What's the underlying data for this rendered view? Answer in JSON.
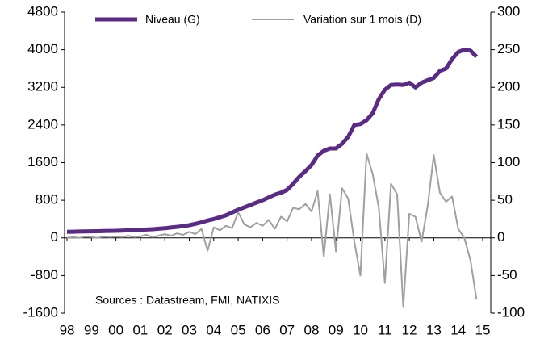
{
  "chart_data": {
    "type": "line",
    "annotation": "Sources : Datastream, FMI, NATIXIS",
    "x": [
      1998,
      1998.25,
      1998.5,
      1998.75,
      1999,
      1999.25,
      1999.5,
      1999.75,
      2000,
      2000.25,
      2000.5,
      2000.75,
      2001,
      2001.25,
      2001.5,
      2001.75,
      2002,
      2002.25,
      2002.5,
      2002.75,
      2003,
      2003.25,
      2003.5,
      2003.75,
      2004,
      2004.25,
      2004.5,
      2004.75,
      2005,
      2005.25,
      2005.5,
      2005.75,
      2006,
      2006.25,
      2006.5,
      2006.75,
      2007,
      2007.25,
      2007.5,
      2007.75,
      2008,
      2008.25,
      2008.5,
      2008.75,
      2009,
      2009.25,
      2009.5,
      2009.75,
      2010,
      2010.25,
      2010.5,
      2010.75,
      2011,
      2011.25,
      2011.5,
      2011.75,
      2012,
      2012.25,
      2012.5,
      2012.75,
      2013,
      2013.25,
      2013.5,
      2013.75,
      2014,
      2014.25,
      2014.5,
      2014.75
    ],
    "series": [
      {
        "name": "Niveau (G)",
        "color": "#5b2a86",
        "axis": "y",
        "values": [
          130,
          132,
          135,
          137,
          140,
          142,
          145,
          148,
          150,
          155,
          160,
          165,
          170,
          178,
          185,
          195,
          205,
          220,
          235,
          250,
          270,
          300,
          330,
          370,
          400,
          440,
          480,
          540,
          600,
          650,
          700,
          750,
          800,
          860,
          920,
          960,
          1020,
          1150,
          1300,
          1420,
          1550,
          1750,
          1850,
          1900,
          1900,
          2000,
          2150,
          2400,
          2420,
          2500,
          2650,
          2950,
          3150,
          3250,
          3260,
          3250,
          3300,
          3200,
          3300,
          3350,
          3400,
          3550,
          3600,
          3800,
          3950,
          4000,
          3980,
          3850
        ]
      },
      {
        "name": "Variation sur 1 mois (D)",
        "color": "#a0a0a0",
        "axis": "y2",
        "values": [
          0,
          1,
          0,
          2,
          1,
          0,
          2,
          1,
          2,
          1,
          3,
          1,
          2,
          4,
          1,
          3,
          5,
          3,
          6,
          4,
          8,
          5,
          12,
          -17,
          14,
          10,
          16,
          13,
          34,
          18,
          14,
          20,
          16,
          24,
          12,
          28,
          22,
          40,
          38,
          45,
          35,
          62,
          -25,
          58,
          -18,
          66,
          52,
          -5,
          -50,
          112,
          85,
          40,
          -60,
          72,
          58,
          -92,
          32,
          28,
          -5,
          42,
          110,
          60,
          48,
          55,
          12,
          0,
          -30,
          -82
        ]
      }
    ],
    "xlim": [
      1997.9,
      2015.33
    ],
    "xticks": [
      {
        "value": 1998,
        "label": "98"
      },
      {
        "value": 1999,
        "label": "99"
      },
      {
        "value": 2000,
        "label": "00"
      },
      {
        "value": 2001,
        "label": "01"
      },
      {
        "value": 2002,
        "label": "02"
      },
      {
        "value": 2003,
        "label": "03"
      },
      {
        "value": 2004,
        "label": "04"
      },
      {
        "value": 2005,
        "label": "05"
      },
      {
        "value": 2006,
        "label": "06"
      },
      {
        "value": 2007,
        "label": "07"
      },
      {
        "value": 2008,
        "label": "08"
      },
      {
        "value": 2009,
        "label": "09"
      },
      {
        "value": 2010,
        "label": "10"
      },
      {
        "value": 2011,
        "label": "11"
      },
      {
        "value": 2012,
        "label": "12"
      },
      {
        "value": 2013,
        "label": "13"
      },
      {
        "value": 2014,
        "label": "14"
      },
      {
        "value": 2015,
        "label": "15"
      }
    ],
    "ylim": [
      -1600,
      4800
    ],
    "yticks": [
      -1600,
      -800,
      0,
      800,
      1600,
      2400,
      3200,
      4000,
      4800
    ],
    "y2lim": [
      -100,
      300
    ],
    "y2ticks": [
      -100,
      -50,
      0,
      50,
      100,
      150,
      200,
      250,
      300
    ],
    "grid": false
  }
}
